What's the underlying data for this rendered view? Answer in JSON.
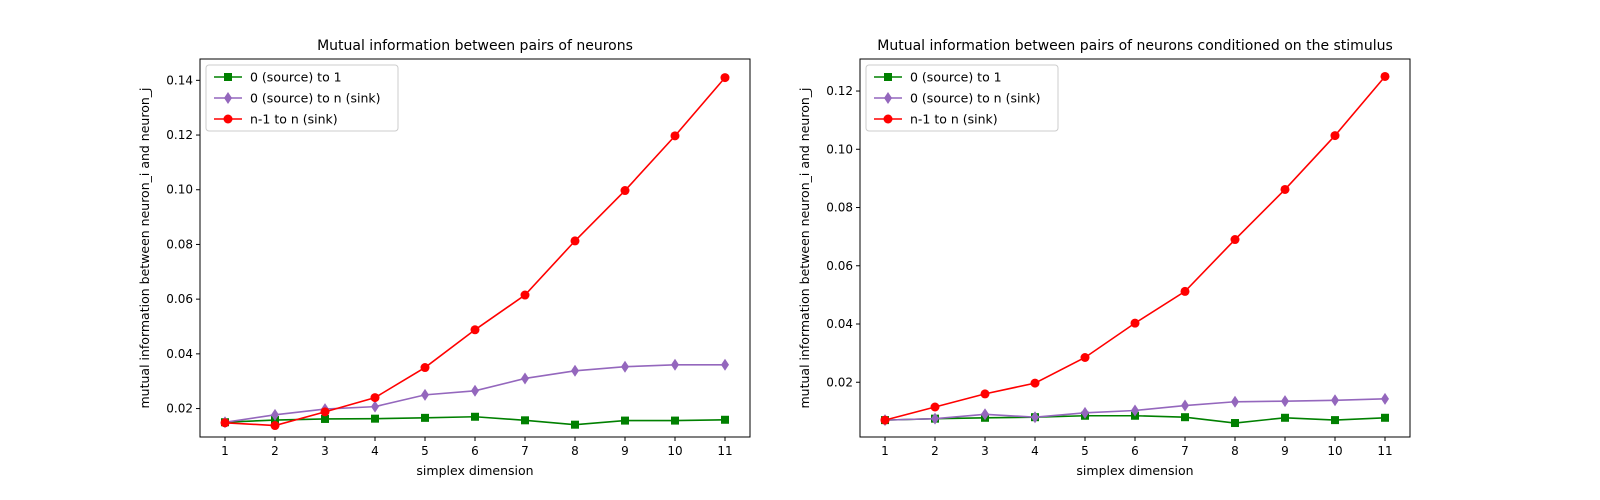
{
  "chart_data": [
    {
      "type": "line",
      "title": "Mutual information between pairs of neurons",
      "xlabel": "simplex dimension",
      "ylabel": "mutual information between neuron_i and neuron_j",
      "x": [
        1,
        2,
        3,
        4,
        5,
        6,
        7,
        8,
        9,
        10,
        11
      ],
      "xticks": [
        "1",
        "2",
        "3",
        "4",
        "5",
        "6",
        "7",
        "8",
        "9",
        "10",
        "11"
      ],
      "yticks": [
        0.02,
        0.04,
        0.06,
        0.08,
        0.1,
        0.12,
        0.14
      ],
      "ytick_labels": [
        "0.02",
        "0.04",
        "0.06",
        "0.08",
        "0.10",
        "0.12",
        "0.14"
      ],
      "xlim": [
        0.5,
        11.5
      ],
      "ylim": [
        0.0096,
        0.1478
      ],
      "grid": false,
      "legend_position": "top-left",
      "series": [
        {
          "name": "0 (source) to 1",
          "color": "#008000",
          "marker": "square",
          "values": [
            0.015,
            0.0158,
            0.0162,
            0.0163,
            0.0166,
            0.017,
            0.0157,
            0.0141,
            0.0156,
            0.0156,
            0.0159
          ]
        },
        {
          "name": "0 (source) to n (sink)",
          "color": "#9467bd",
          "marker": "diamond",
          "values": [
            0.015,
            0.0177,
            0.0198,
            0.0207,
            0.025,
            0.0265,
            0.031,
            0.0338,
            0.0353,
            0.036,
            0.036
          ]
        },
        {
          "name": "n-1 to n (sink)",
          "color": "#ff0000",
          "marker": "circle",
          "values": [
            0.0148,
            0.0138,
            0.0188,
            0.024,
            0.035,
            0.0488,
            0.0615,
            0.0813,
            0.0997,
            0.1197,
            0.141
          ]
        }
      ]
    },
    {
      "type": "line",
      "title": "Mutual information between pairs of neurons conditioned on the stimulus",
      "xlabel": "simplex dimension",
      "ylabel": "mutual information between neuron_i and neuron_j",
      "x": [
        1,
        2,
        3,
        4,
        5,
        6,
        7,
        8,
        9,
        10,
        11
      ],
      "xticks": [
        "1",
        "2",
        "3",
        "4",
        "5",
        "6",
        "7",
        "8",
        "9",
        "10",
        "11"
      ],
      "yticks": [
        0.02,
        0.04,
        0.06,
        0.08,
        0.1,
        0.12
      ],
      "ytick_labels": [
        "0.02",
        "0.04",
        "0.06",
        "0.08",
        "0.10",
        "0.12"
      ],
      "xlim": [
        0.5,
        11.5
      ],
      "ylim": [
        0.0012,
        0.131
      ],
      "grid": false,
      "legend_position": "top-left",
      "series": [
        {
          "name": "0 (source) to 1",
          "color": "#008000",
          "marker": "square",
          "values": [
            0.007,
            0.0075,
            0.0078,
            0.008,
            0.0085,
            0.0085,
            0.008,
            0.006,
            0.0078,
            0.007,
            0.0078
          ]
        },
        {
          "name": "0 (source) to n (sink)",
          "color": "#9467bd",
          "marker": "diamond",
          "values": [
            0.007,
            0.0075,
            0.009,
            0.008,
            0.0095,
            0.0103,
            0.012,
            0.0133,
            0.0135,
            0.0138,
            0.0143
          ]
        },
        {
          "name": "n-1 to n (sink)",
          "color": "#ff0000",
          "marker": "circle",
          "values": [
            0.007,
            0.0115,
            0.016,
            0.0197,
            0.0285,
            0.0403,
            0.0512,
            0.069,
            0.0862,
            0.1047,
            0.125
          ]
        }
      ]
    }
  ]
}
